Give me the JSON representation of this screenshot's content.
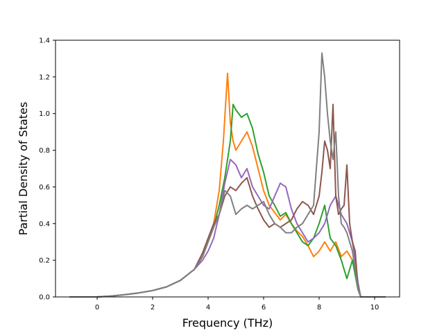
{
  "chart_data": {
    "type": "line",
    "title": "",
    "xlabel": "Frequency (THz)",
    "ylabel": "Partial Density of States",
    "xlim": [
      -1.5,
      10.9
    ],
    "ylim": [
      0,
      1.4
    ],
    "xticks": [
      0,
      2,
      4,
      6,
      8,
      10
    ],
    "yticks": [
      0.0,
      0.2,
      0.4,
      0.6,
      0.8,
      1.0,
      1.2,
      1.4
    ],
    "yticklabels": [
      "0.0",
      "0.2",
      "0.4",
      "0.6",
      "0.8",
      "1.0",
      "1.2",
      "1.4"
    ],
    "grid": false,
    "legend": "none",
    "series": [
      {
        "color": "#ff7f0e",
        "x": [
          -1.0,
          0.0,
          0.5,
          1.0,
          1.5,
          2.0,
          2.5,
          3.0,
          3.5,
          3.8,
          4.0,
          4.2,
          4.4,
          4.55,
          4.65,
          4.7,
          4.8,
          4.9,
          5.0,
          5.2,
          5.4,
          5.6,
          5.8,
          6.0,
          6.2,
          6.4,
          6.6,
          6.8,
          7.0,
          7.2,
          7.4,
          7.6,
          7.8,
          8.0,
          8.2,
          8.4,
          8.6,
          8.8,
          9.0,
          9.2,
          9.3,
          9.4,
          9.5,
          10.4
        ],
        "y": [
          0.0,
          0.0,
          0.005,
          0.012,
          0.022,
          0.035,
          0.055,
          0.09,
          0.15,
          0.22,
          0.3,
          0.4,
          0.58,
          0.85,
          1.1,
          1.22,
          0.95,
          0.85,
          0.8,
          0.85,
          0.9,
          0.82,
          0.7,
          0.58,
          0.5,
          0.46,
          0.42,
          0.45,
          0.4,
          0.36,
          0.33,
          0.28,
          0.22,
          0.25,
          0.3,
          0.25,
          0.3,
          0.22,
          0.25,
          0.2,
          0.15,
          0.05,
          0.0,
          0.0
        ]
      },
      {
        "color": "#2ca02c",
        "x": [
          -1.0,
          0.0,
          0.5,
          1.0,
          1.5,
          2.0,
          2.5,
          3.0,
          3.5,
          3.8,
          4.0,
          4.2,
          4.4,
          4.6,
          4.8,
          4.9,
          5.0,
          5.2,
          5.4,
          5.6,
          5.8,
          6.0,
          6.2,
          6.4,
          6.6,
          6.8,
          7.0,
          7.2,
          7.4,
          7.6,
          7.8,
          8.0,
          8.2,
          8.4,
          8.6,
          8.8,
          9.0,
          9.2,
          9.3,
          9.4,
          9.5,
          10.4
        ],
        "y": [
          0.0,
          0.0,
          0.005,
          0.012,
          0.022,
          0.035,
          0.055,
          0.09,
          0.15,
          0.22,
          0.3,
          0.38,
          0.5,
          0.65,
          0.85,
          1.05,
          1.02,
          0.98,
          1.0,
          0.92,
          0.78,
          0.68,
          0.55,
          0.5,
          0.44,
          0.46,
          0.4,
          0.35,
          0.3,
          0.28,
          0.32,
          0.4,
          0.5,
          0.32,
          0.28,
          0.2,
          0.1,
          0.2,
          0.12,
          0.04,
          0.0,
          0.0
        ]
      },
      {
        "color": "#9467bd",
        "x": [
          -1.0,
          0.0,
          0.5,
          1.0,
          1.5,
          2.0,
          2.5,
          3.0,
          3.5,
          3.8,
          4.0,
          4.2,
          4.4,
          4.6,
          4.8,
          5.0,
          5.2,
          5.4,
          5.6,
          5.8,
          6.0,
          6.2,
          6.4,
          6.6,
          6.8,
          7.0,
          7.2,
          7.4,
          7.6,
          7.8,
          8.0,
          8.2,
          8.4,
          8.6,
          8.8,
          9.0,
          9.2,
          9.3,
          9.4,
          9.5,
          10.4
        ],
        "y": [
          0.0,
          0.0,
          0.005,
          0.012,
          0.022,
          0.035,
          0.055,
          0.09,
          0.15,
          0.2,
          0.25,
          0.32,
          0.45,
          0.62,
          0.75,
          0.72,
          0.65,
          0.7,
          0.6,
          0.55,
          0.5,
          0.48,
          0.55,
          0.62,
          0.6,
          0.48,
          0.4,
          0.35,
          0.3,
          0.32,
          0.35,
          0.4,
          0.5,
          0.55,
          0.45,
          0.4,
          0.3,
          0.2,
          0.08,
          0.0,
          0.0
        ]
      },
      {
        "color": "#8c564b",
        "x": [
          -1.0,
          0.0,
          0.5,
          1.0,
          1.5,
          2.0,
          2.5,
          3.0,
          3.5,
          3.8,
          4.0,
          4.2,
          4.4,
          4.6,
          4.8,
          5.0,
          5.2,
          5.4,
          5.6,
          5.8,
          6.0,
          6.2,
          6.4,
          6.6,
          6.8,
          7.0,
          7.2,
          7.4,
          7.6,
          7.8,
          8.0,
          8.1,
          8.2,
          8.3,
          8.4,
          8.5,
          8.6,
          8.7,
          8.8,
          8.9,
          9.0,
          9.1,
          9.2,
          9.3,
          9.4,
          9.5,
          10.4
        ],
        "y": [
          0.0,
          0.0,
          0.005,
          0.012,
          0.022,
          0.035,
          0.055,
          0.09,
          0.15,
          0.24,
          0.32,
          0.4,
          0.45,
          0.55,
          0.6,
          0.58,
          0.62,
          0.65,
          0.55,
          0.48,
          0.42,
          0.38,
          0.4,
          0.38,
          0.4,
          0.42,
          0.48,
          0.52,
          0.5,
          0.45,
          0.55,
          0.68,
          0.85,
          0.8,
          0.7,
          1.05,
          0.55,
          0.45,
          0.48,
          0.5,
          0.72,
          0.4,
          0.3,
          0.25,
          0.05,
          0.0,
          0.0
        ]
      },
      {
        "color": "#7f7f7f",
        "x": [
          -1.0,
          0.0,
          0.5,
          1.0,
          1.5,
          2.0,
          2.5,
          3.0,
          3.5,
          3.8,
          4.0,
          4.2,
          4.4,
          4.6,
          4.8,
          5.0,
          5.2,
          5.4,
          5.6,
          5.8,
          6.0,
          6.2,
          6.4,
          6.6,
          6.8,
          7.0,
          7.2,
          7.4,
          7.6,
          7.8,
          8.0,
          8.1,
          8.2,
          8.3,
          8.4,
          8.5,
          8.6,
          8.7,
          8.8,
          8.9,
          9.0,
          9.1,
          9.2,
          9.3,
          9.4,
          9.5,
          10.4
        ],
        "y": [
          0.0,
          0.0,
          0.005,
          0.012,
          0.022,
          0.035,
          0.055,
          0.09,
          0.15,
          0.22,
          0.3,
          0.38,
          0.45,
          0.58,
          0.55,
          0.45,
          0.48,
          0.5,
          0.48,
          0.5,
          0.52,
          0.45,
          0.4,
          0.38,
          0.35,
          0.35,
          0.38,
          0.4,
          0.45,
          0.5,
          0.9,
          1.33,
          1.2,
          1.0,
          0.85,
          0.75,
          0.9,
          0.55,
          0.4,
          0.38,
          0.35,
          0.3,
          0.25,
          0.15,
          0.05,
          0.0,
          0.0
        ]
      }
    ]
  }
}
